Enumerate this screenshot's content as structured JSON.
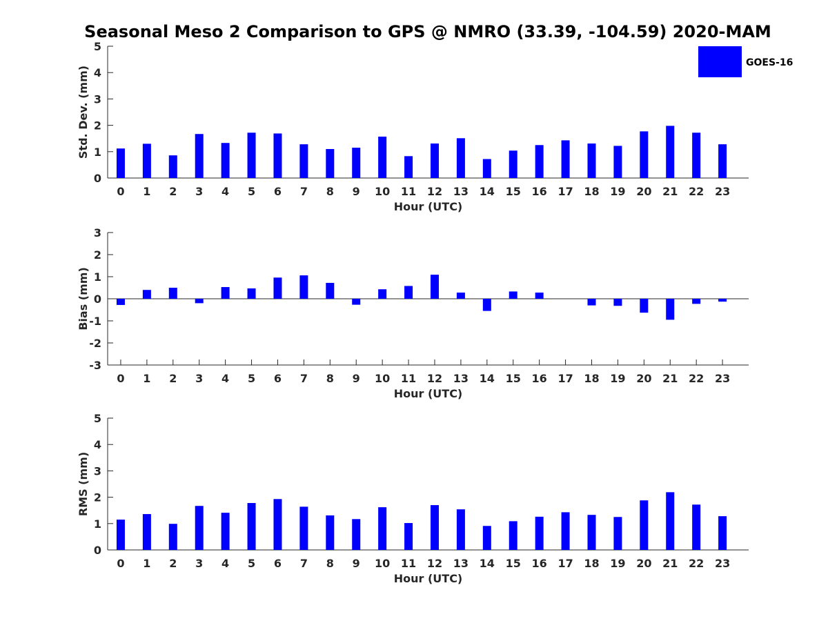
{
  "title": "Seasonal Meso 2 Comparison to GPS @ NMRO (33.39, -104.59) 2020-MAM",
  "legend": {
    "label": "GOES-16",
    "color": "#0000ff"
  },
  "chart_data": [
    {
      "type": "bar",
      "name": "std-dev",
      "xlabel": "Hour (UTC)",
      "ylabel": "Std. Dev. (mm)",
      "ylim": [
        0,
        5
      ],
      "yticks": [
        0,
        1,
        2,
        3,
        4,
        5
      ],
      "categories": [
        "0",
        "1",
        "2",
        "3",
        "4",
        "5",
        "6",
        "7",
        "8",
        "9",
        "10",
        "11",
        "12",
        "13",
        "14",
        "15",
        "16",
        "17",
        "18",
        "19",
        "20",
        "21",
        "22",
        "23"
      ],
      "series": [
        {
          "name": "GOES-16",
          "color": "#0000ff",
          "values": [
            1.12,
            1.3,
            0.86,
            1.67,
            1.33,
            1.72,
            1.69,
            1.28,
            1.1,
            1.15,
            1.57,
            0.83,
            1.31,
            1.51,
            0.72,
            1.04,
            1.25,
            1.43,
            1.31,
            1.22,
            1.77,
            1.98,
            1.72,
            1.28
          ]
        }
      ]
    },
    {
      "type": "bar",
      "name": "bias",
      "xlabel": "Hour (UTC)",
      "ylabel": "Bias (mm)",
      "ylim": [
        -3,
        3
      ],
      "yticks": [
        -3,
        -2,
        -1,
        0,
        1,
        2,
        3
      ],
      "zero_line": true,
      "categories": [
        "0",
        "1",
        "2",
        "3",
        "4",
        "5",
        "6",
        "7",
        "8",
        "9",
        "10",
        "11",
        "12",
        "13",
        "14",
        "15",
        "16",
        "17",
        "18",
        "19",
        "20",
        "21",
        "22",
        "23"
      ],
      "series": [
        {
          "name": "GOES-16",
          "color": "#0000ff",
          "values": [
            -0.28,
            0.4,
            0.5,
            -0.2,
            0.53,
            0.47,
            0.96,
            1.06,
            0.72,
            -0.27,
            0.43,
            0.58,
            1.09,
            0.28,
            -0.55,
            0.33,
            0.28,
            0.0,
            -0.3,
            -0.32,
            -0.63,
            -0.95,
            -0.23,
            -0.13
          ]
        }
      ]
    },
    {
      "type": "bar",
      "name": "rms",
      "xlabel": "Hour (UTC)",
      "ylabel": "RMS (mm)",
      "ylim": [
        0,
        5
      ],
      "yticks": [
        0,
        1,
        2,
        3,
        4,
        5
      ],
      "categories": [
        "0",
        "1",
        "2",
        "3",
        "4",
        "5",
        "6",
        "7",
        "8",
        "9",
        "10",
        "11",
        "12",
        "13",
        "14",
        "15",
        "16",
        "17",
        "18",
        "19",
        "20",
        "21",
        "22",
        "23"
      ],
      "series": [
        {
          "name": "GOES-16",
          "color": "#0000ff",
          "values": [
            1.15,
            1.36,
            0.99,
            1.67,
            1.41,
            1.78,
            1.93,
            1.64,
            1.31,
            1.17,
            1.62,
            1.02,
            1.7,
            1.54,
            0.91,
            1.09,
            1.26,
            1.43,
            1.33,
            1.25,
            1.88,
            2.19,
            1.72,
            1.28
          ]
        }
      ]
    }
  ]
}
